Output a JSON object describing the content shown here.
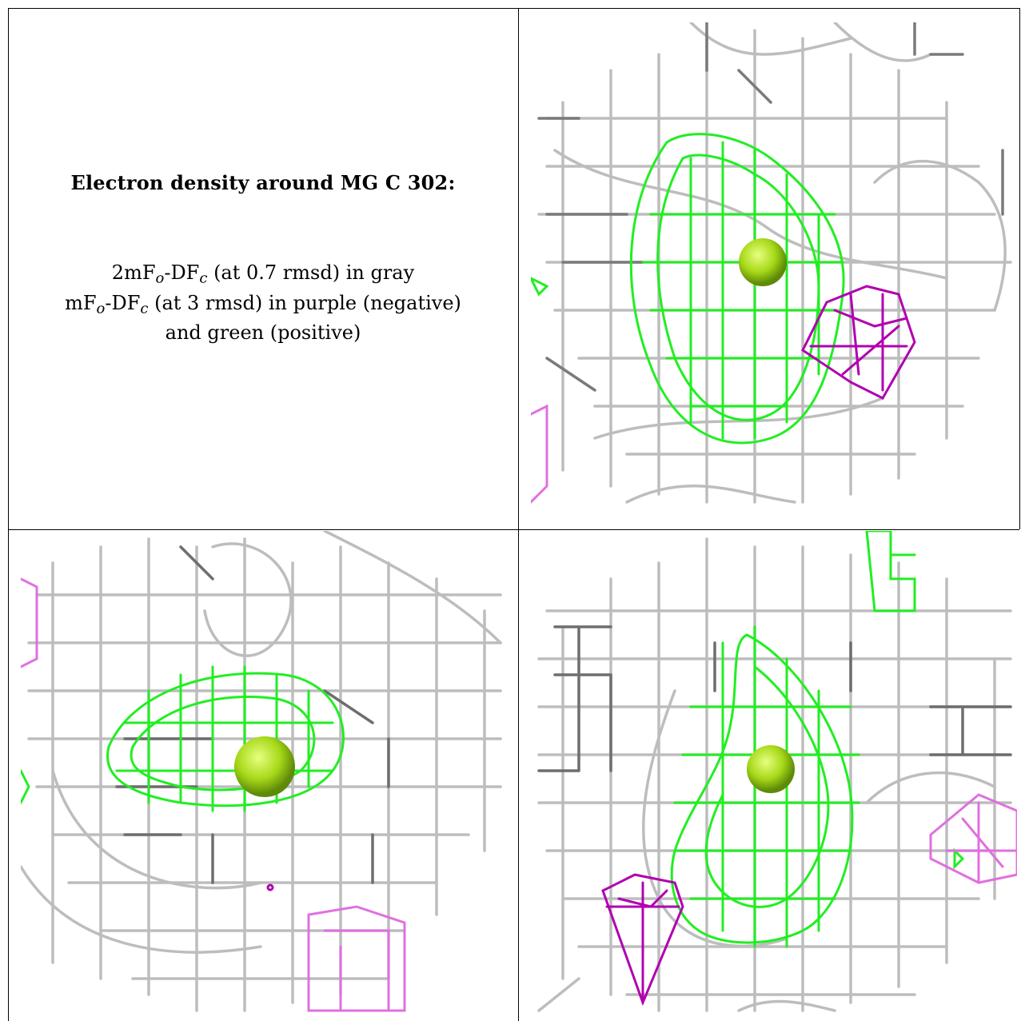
{
  "title": "Electron density around MG C 302:",
  "legend": {
    "line1_prefix": "2mF",
    "line1_sub1": "o",
    "line1_mid": "-DF",
    "line1_sub2": "c",
    "line1_suffix": " (at 0.7 rmsd) in gray",
    "line2_prefix": "mF",
    "line2_sub1": "o",
    "line2_mid": "-DF",
    "line2_sub2": "c",
    "line2_suffix": " (at 3 rmsd) in purple (negative)",
    "line3": "and green (positive)"
  },
  "colors": {
    "gray_mesh": "#b4b4b4",
    "dark_gray_mesh": "#6e6e6e",
    "green_mesh": "#22ee22",
    "purple_mesh": "#b400b4",
    "light_purple_mesh": "#e070e0",
    "mg_atom": "#a6d818",
    "border": "#000000"
  },
  "panels": [
    {
      "name": "view-1"
    },
    {
      "name": "view-2"
    },
    {
      "name": "view-3"
    }
  ]
}
